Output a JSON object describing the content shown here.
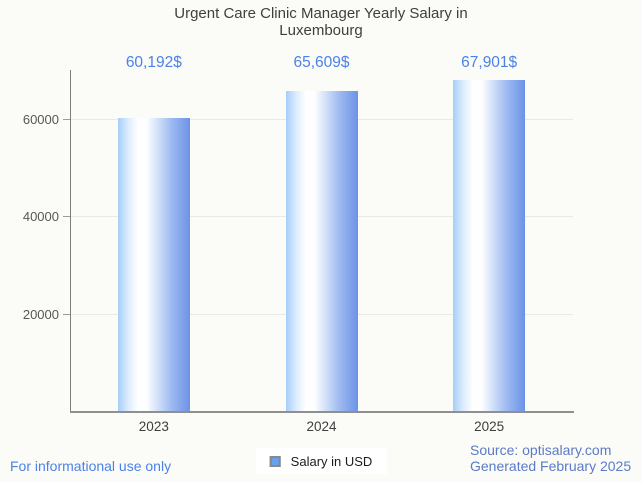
{
  "chart_data": {
    "type": "bar",
    "title": "Urgent Care Clinic Manager Yearly Salary in Luxembourg",
    "categories": [
      "2023",
      "2024",
      "2025"
    ],
    "series": [
      {
        "name": "Salary in USD",
        "values": [
          60192,
          65609,
          67901
        ]
      }
    ],
    "value_labels": [
      "60,192$",
      "65,609$",
      "67,901$"
    ],
    "xlabel": "",
    "ylabel": "",
    "ylim": [
      0,
      70000
    ],
    "yticks": [
      20000,
      40000,
      60000
    ],
    "grid": true,
    "legend_position": "bottom"
  },
  "legend": {
    "label": "Salary in USD"
  },
  "footer": {
    "disclaimer": "For informational use only",
    "source": "Source: optisalary.com",
    "generated": "Generated February 2025"
  },
  "colors": {
    "background": "#fbfbf8",
    "title_text": "#3f3f3f",
    "value_label_text": "#4a83e8",
    "bar_gradient_left": "#a6cef9",
    "bar_gradient_mid": "#ffffff",
    "bar_gradient_right": "#6b93e6",
    "legend_swatch": "#64a1f0",
    "axis_line": "#8f8f8f",
    "gridline": "#e9e9e9",
    "axis_label_text": "#575757",
    "disclaimer_text": "#4b82e8",
    "source_text": "#5b7bc8"
  }
}
